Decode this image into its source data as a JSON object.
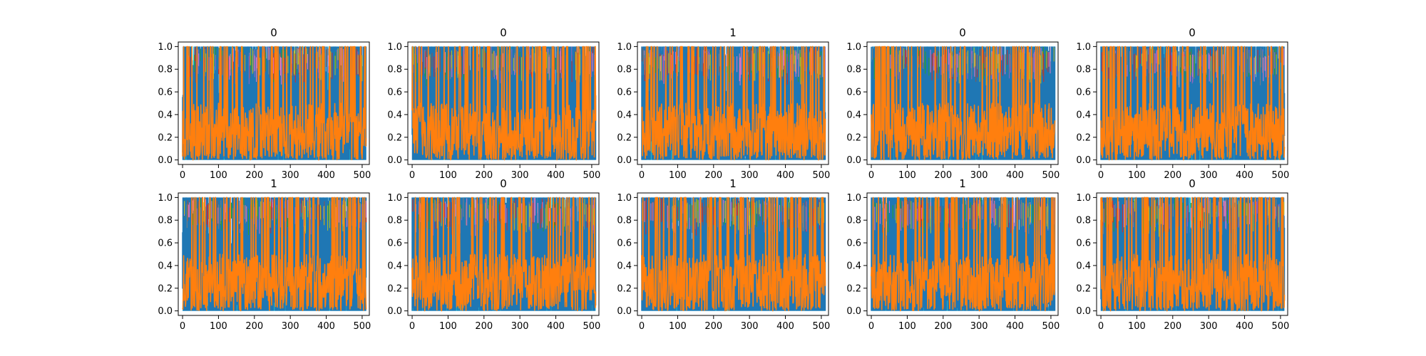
{
  "chart_data": [
    {
      "type": "line",
      "title": "0",
      "xlim": [
        -12,
        520
      ],
      "ylim": [
        -0.04,
        1.04
      ],
      "x_ticks": [
        0,
        100,
        200,
        300,
        400,
        500
      ],
      "y_ticks": [
        0.0,
        0.2,
        0.4,
        0.6,
        0.8,
        1.0
      ],
      "grid": false,
      "x_range": [
        0,
        511
      ],
      "y_range": [
        0,
        1
      ]
    },
    {
      "type": "line",
      "title": "0",
      "xlim": [
        -12,
        520
      ],
      "ylim": [
        -0.04,
        1.04
      ],
      "x_ticks": [
        0,
        100,
        200,
        300,
        400,
        500
      ],
      "y_ticks": [
        0.0,
        0.2,
        0.4,
        0.6,
        0.8,
        1.0
      ],
      "grid": false,
      "x_range": [
        0,
        511
      ],
      "y_range": [
        0,
        1
      ]
    },
    {
      "type": "line",
      "title": "1",
      "xlim": [
        -12,
        520
      ],
      "ylim": [
        -0.04,
        1.04
      ],
      "x_ticks": [
        0,
        100,
        200,
        300,
        400,
        500
      ],
      "y_ticks": [
        0.0,
        0.2,
        0.4,
        0.6,
        0.8,
        1.0
      ],
      "grid": false,
      "x_range": [
        0,
        511
      ],
      "y_range": [
        0,
        1
      ]
    },
    {
      "type": "line",
      "title": "0",
      "xlim": [
        -12,
        520
      ],
      "ylim": [
        -0.04,
        1.04
      ],
      "x_ticks": [
        0,
        100,
        200,
        300,
        400,
        500
      ],
      "y_ticks": [
        0.0,
        0.2,
        0.4,
        0.6,
        0.8,
        1.0
      ],
      "grid": false,
      "x_range": [
        0,
        511
      ],
      "y_range": [
        0,
        1
      ]
    },
    {
      "type": "line",
      "title": "0",
      "xlim": [
        -12,
        520
      ],
      "ylim": [
        -0.04,
        1.04
      ],
      "x_ticks": [
        0,
        100,
        200,
        300,
        400,
        500
      ],
      "y_ticks": [
        0.0,
        0.2,
        0.4,
        0.6,
        0.8,
        1.0
      ],
      "grid": false,
      "x_range": [
        0,
        511
      ],
      "y_range": [
        0,
        1
      ]
    },
    {
      "type": "line",
      "title": "1",
      "xlim": [
        -12,
        520
      ],
      "ylim": [
        -0.04,
        1.04
      ],
      "x_ticks": [
        0,
        100,
        200,
        300,
        400,
        500
      ],
      "y_ticks": [
        0.0,
        0.2,
        0.4,
        0.6,
        0.8,
        1.0
      ],
      "grid": false,
      "x_range": [
        0,
        511
      ],
      "y_range": [
        0,
        1
      ]
    },
    {
      "type": "line",
      "title": "0",
      "xlim": [
        -12,
        520
      ],
      "ylim": [
        -0.04,
        1.04
      ],
      "x_ticks": [
        0,
        100,
        200,
        300,
        400,
        500
      ],
      "y_ticks": [
        0.0,
        0.2,
        0.4,
        0.6,
        0.8,
        1.0
      ],
      "grid": false,
      "x_range": [
        0,
        511
      ],
      "y_range": [
        0,
        1
      ]
    },
    {
      "type": "line",
      "title": "1",
      "xlim": [
        -12,
        520
      ],
      "ylim": [
        -0.04,
        1.04
      ],
      "x_ticks": [
        0,
        100,
        200,
        300,
        400,
        500
      ],
      "y_ticks": [
        0.0,
        0.2,
        0.4,
        0.6,
        0.8,
        1.0
      ],
      "grid": false,
      "x_range": [
        0,
        511
      ],
      "y_range": [
        0,
        1
      ]
    },
    {
      "type": "line",
      "title": "1",
      "xlim": [
        -12,
        520
      ],
      "ylim": [
        -0.04,
        1.04
      ],
      "x_ticks": [
        0,
        100,
        200,
        300,
        400,
        500
      ],
      "y_ticks": [
        0.0,
        0.2,
        0.4,
        0.6,
        0.8,
        1.0
      ],
      "grid": false,
      "x_range": [
        0,
        511
      ],
      "y_range": [
        0,
        1
      ]
    },
    {
      "type": "line",
      "title": "0",
      "xlim": [
        -12,
        520
      ],
      "ylim": [
        -0.04,
        1.04
      ],
      "x_ticks": [
        0,
        100,
        200,
        300,
        400,
        500
      ],
      "y_ticks": [
        0.0,
        0.2,
        0.4,
        0.6,
        0.8,
        1.0
      ],
      "grid": false,
      "x_range": [
        0,
        511
      ],
      "y_range": [
        0,
        1
      ]
    }
  ],
  "colors": {
    "primary_series": "#1f77b4",
    "highlight_series": "#ff7f0e",
    "secondary_series": "#17becf",
    "minor_series": [
      "#2ca02c",
      "#d62728",
      "#9467bd",
      "#8c564b",
      "#e377c2",
      "#7f7f7f",
      "#bcbd22"
    ]
  }
}
